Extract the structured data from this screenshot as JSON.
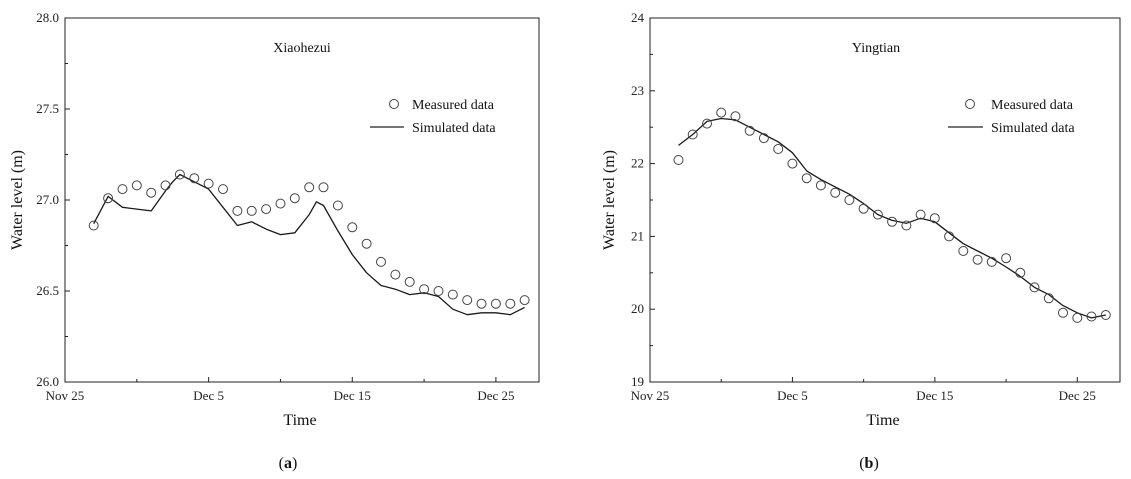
{
  "chart_data": [
    {
      "type": "line",
      "panel_label": "a",
      "title": "Xiaohezui",
      "xlabel": "Time",
      "ylabel": "Water level (m)",
      "x_ticks": [
        "Nov 25",
        "Dec 5",
        "Dec 15",
        "Dec 25"
      ],
      "x_tick_days": [
        0,
        10,
        20,
        30
      ],
      "xlim_days": [
        0,
        33
      ],
      "ylim": [
        26.0,
        28.0
      ],
      "y_ticks": [
        "26.0",
        "26.5",
        "27.0",
        "27.5",
        "28.0"
      ],
      "y_tick_values": [
        26.0,
        26.5,
        27.0,
        27.5,
        28.0
      ],
      "legend_position": "top-right",
      "series": [
        {
          "name": "Measured data",
          "kind": "scatter",
          "x": [
            2,
            3,
            4,
            5,
            6,
            7,
            8,
            9,
            10,
            11,
            12,
            13,
            14,
            15,
            16,
            17,
            18,
            19,
            20,
            21,
            22,
            23,
            24,
            25,
            26,
            27,
            28,
            29,
            30,
            31,
            32
          ],
          "y": [
            26.86,
            27.01,
            27.06,
            27.08,
            27.04,
            27.08,
            27.14,
            27.12,
            27.09,
            27.06,
            26.94,
            26.94,
            26.95,
            26.98,
            27.01,
            27.07,
            27.07,
            26.97,
            26.85,
            26.76,
            26.66,
            26.59,
            26.55,
            26.51,
            26.5,
            26.48,
            26.45,
            26.43,
            26.43,
            26.43,
            26.45
          ]
        },
        {
          "name": "Simulated data",
          "kind": "line",
          "x": [
            2,
            3,
            4,
            5,
            6,
            7,
            7.5,
            8,
            9,
            10,
            11,
            12,
            13,
            14,
            15,
            16,
            17,
            17.5,
            18,
            19,
            20,
            21,
            22,
            23,
            24,
            25,
            26,
            27,
            28,
            29,
            30,
            31,
            32
          ],
          "y": [
            26.87,
            27.02,
            26.96,
            26.95,
            26.94,
            27.05,
            27.1,
            27.14,
            27.1,
            27.06,
            26.96,
            26.86,
            26.88,
            26.84,
            26.81,
            26.82,
            26.92,
            26.99,
            26.97,
            26.83,
            26.7,
            26.6,
            26.53,
            26.51,
            26.48,
            26.49,
            26.47,
            26.4,
            26.37,
            26.38,
            26.38,
            26.37,
            26.41
          ]
        }
      ]
    },
    {
      "type": "line",
      "panel_label": "b",
      "title": "Yingtian",
      "xlabel": "Time",
      "ylabel": "Water level (m)",
      "x_ticks": [
        "Nov 25",
        "Dec 5",
        "Dec 15",
        "Dec 25"
      ],
      "x_tick_days": [
        0,
        10,
        20,
        30
      ],
      "xlim_days": [
        0,
        33
      ],
      "ylim": [
        19,
        24
      ],
      "y_ticks": [
        "19",
        "20",
        "21",
        "22",
        "23",
        "24"
      ],
      "y_tick_values": [
        19,
        20,
        21,
        22,
        23,
        24
      ],
      "legend_position": "top-right",
      "series": [
        {
          "name": "Measured data",
          "kind": "scatter",
          "x": [
            2,
            3,
            4,
            5,
            6,
            7,
            8,
            9,
            10,
            11,
            12,
            13,
            14,
            15,
            16,
            17,
            18,
            19,
            20,
            21,
            22,
            23,
            24,
            25,
            26,
            27,
            28,
            29,
            30,
            31,
            32
          ],
          "y": [
            22.05,
            22.4,
            22.55,
            22.7,
            22.65,
            22.45,
            22.35,
            22.2,
            22.0,
            21.8,
            21.7,
            21.6,
            21.5,
            21.38,
            21.3,
            21.2,
            21.15,
            21.3,
            21.25,
            21.0,
            20.8,
            20.68,
            20.65,
            20.7,
            20.5,
            20.3,
            20.15,
            19.95,
            19.88,
            19.9,
            19.92
          ]
        },
        {
          "name": "Simulated data",
          "kind": "line",
          "x": [
            2,
            3,
            4,
            5,
            6,
            7,
            8,
            9,
            10,
            11,
            12,
            13,
            14,
            15,
            16,
            17,
            18,
            19,
            20,
            21,
            22,
            23,
            24,
            25,
            26,
            27,
            28,
            29,
            30,
            31,
            32
          ],
          "y": [
            22.25,
            22.4,
            22.58,
            22.62,
            22.6,
            22.5,
            22.4,
            22.3,
            22.15,
            21.9,
            21.78,
            21.68,
            21.58,
            21.45,
            21.3,
            21.22,
            21.18,
            21.25,
            21.2,
            21.05,
            20.9,
            20.8,
            20.7,
            20.58,
            20.45,
            20.3,
            20.2,
            20.05,
            19.95,
            19.88,
            19.92
          ]
        }
      ]
    }
  ]
}
